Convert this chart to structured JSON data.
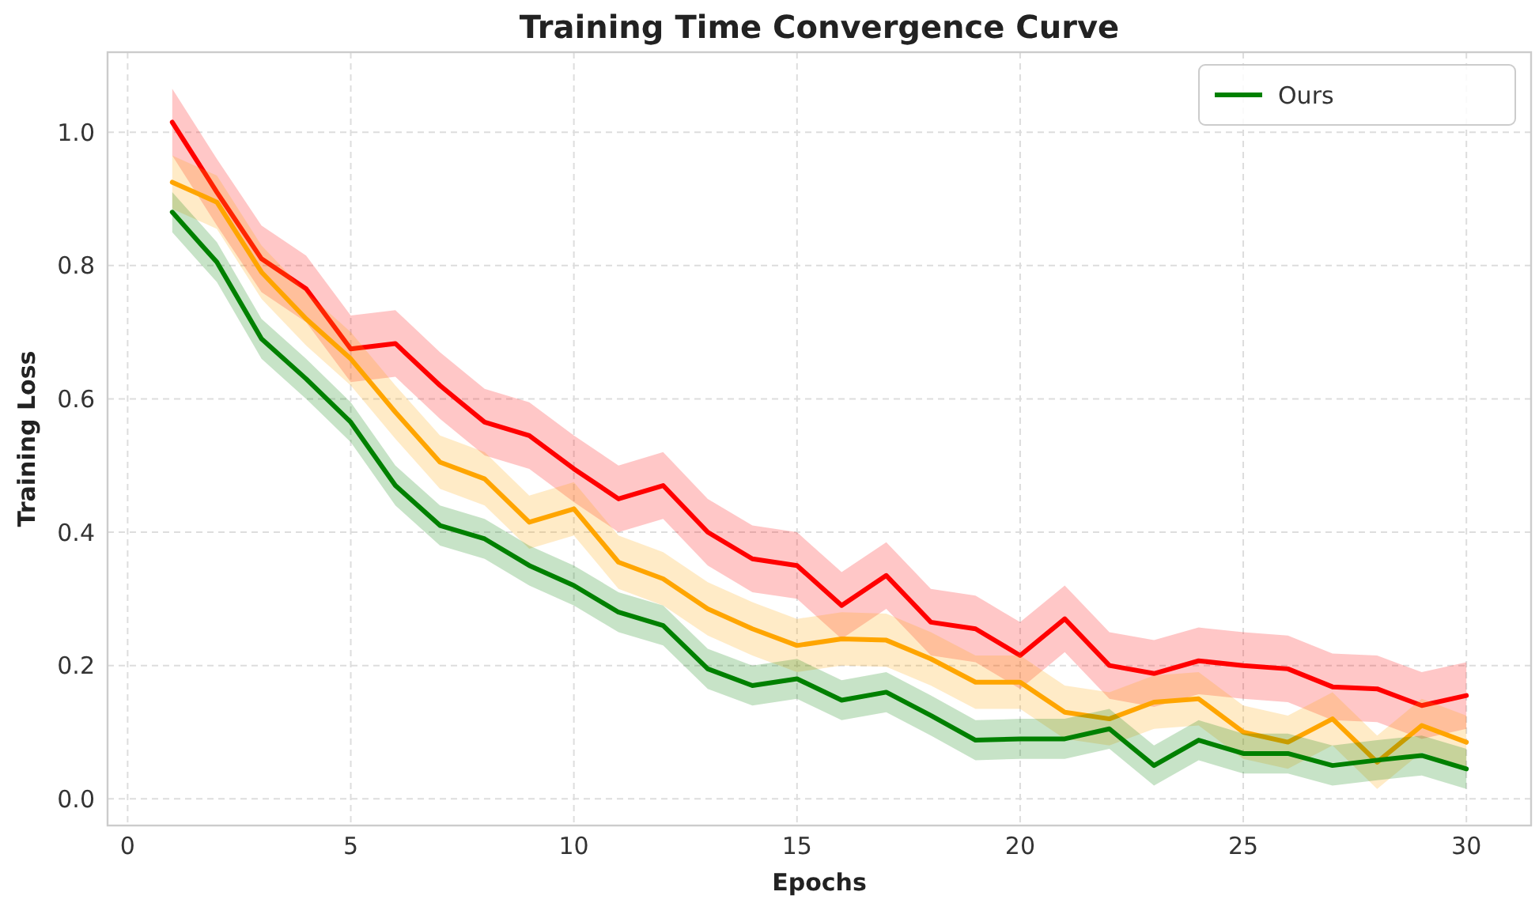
{
  "chart_data": {
    "type": "line",
    "title": "Training Time Convergence Curve",
    "xlabel": "Epochs",
    "ylabel": "Training Loss",
    "x": [
      1,
      2,
      3,
      4,
      5,
      6,
      7,
      8,
      9,
      10,
      11,
      12,
      13,
      14,
      15,
      16,
      17,
      18,
      19,
      20,
      21,
      22,
      23,
      24,
      25,
      26,
      27,
      28,
      29,
      30
    ],
    "xlim": [
      -0.45,
      31.45
    ],
    "xticks": [
      0,
      5,
      10,
      15,
      20,
      25,
      30
    ],
    "ylim": [
      -0.04,
      1.12
    ],
    "yticks": [
      {
        "value": 0,
        "label": "0.0"
      },
      {
        "value": 0.2,
        "label": "0.2"
      },
      {
        "value": 0.4,
        "label": "0.4"
      },
      {
        "value": 0.6,
        "label": "0.6"
      },
      {
        "value": 0.8,
        "label": "0.8"
      },
      {
        "value": 1,
        "label": "1.0"
      }
    ],
    "grid": true,
    "legend": "top right",
    "line_style": "solid",
    "marker": "none",
    "series": [
      {
        "color": "#ff0000",
        "values": [
          1.015,
          0.91,
          0.81,
          0.765,
          0.675,
          0.683,
          0.62,
          0.565,
          0.545,
          0.495,
          0.45,
          0.47,
          0.4,
          0.36,
          0.35,
          0.29,
          0.335,
          0.265,
          0.255,
          0.215,
          0.27,
          0.2,
          0.188,
          0.207,
          0.2,
          0.195,
          0.168,
          0.165,
          0.14,
          0.155
        ],
        "lower": [
          0.965,
          0.86,
          0.76,
          0.715,
          0.625,
          0.633,
          0.57,
          0.515,
          0.495,
          0.445,
          0.4,
          0.42,
          0.35,
          0.31,
          0.3,
          0.24,
          0.285,
          0.215,
          0.205,
          0.165,
          0.22,
          0.15,
          0.138,
          0.157,
          0.15,
          0.145,
          0.118,
          0.115,
          0.09,
          0.105
        ],
        "upper": [
          1.065,
          0.96,
          0.86,
          0.815,
          0.725,
          0.733,
          0.67,
          0.615,
          0.595,
          0.545,
          0.5,
          0.52,
          0.45,
          0.41,
          0.4,
          0.34,
          0.385,
          0.315,
          0.305,
          0.265,
          0.32,
          0.25,
          0.238,
          0.257,
          0.25,
          0.245,
          0.218,
          0.215,
          0.19,
          0.205
        ]
      },
      {
        "color": "#ffa500",
        "values": [
          0.925,
          0.895,
          0.79,
          0.72,
          0.66,
          0.58,
          0.505,
          0.48,
          0.415,
          0.435,
          0.355,
          0.33,
          0.285,
          0.255,
          0.23,
          0.24,
          0.238,
          0.21,
          0.175,
          0.175,
          0.13,
          0.12,
          0.145,
          0.15,
          0.1,
          0.085,
          0.12,
          0.055,
          0.11,
          0.085
        ],
        "lower": [
          0.885,
          0.855,
          0.75,
          0.68,
          0.62,
          0.54,
          0.465,
          0.44,
          0.375,
          0.395,
          0.315,
          0.29,
          0.245,
          0.215,
          0.19,
          0.2,
          0.198,
          0.17,
          0.135,
          0.135,
          0.09,
          0.08,
          0.105,
          0.11,
          0.06,
          0.045,
          0.08,
          0.015,
          0.07,
          0.045
        ],
        "upper": [
          0.965,
          0.935,
          0.83,
          0.76,
          0.7,
          0.62,
          0.545,
          0.52,
          0.455,
          0.475,
          0.395,
          0.37,
          0.325,
          0.295,
          0.27,
          0.28,
          0.278,
          0.25,
          0.215,
          0.215,
          0.17,
          0.16,
          0.185,
          0.19,
          0.14,
          0.125,
          0.16,
          0.095,
          0.15,
          0.125
        ]
      },
      {
        "name": "Ours",
        "color": "#008000",
        "values": [
          0.88,
          0.805,
          0.69,
          0.63,
          0.565,
          0.47,
          0.41,
          0.39,
          0.35,
          0.32,
          0.28,
          0.26,
          0.195,
          0.17,
          0.18,
          0.148,
          0.16,
          0.125,
          0.088,
          0.09,
          0.09,
          0.105,
          0.05,
          0.088,
          0.068,
          0.068,
          0.05,
          0.058,
          0.065,
          0.045
        ],
        "lower": [
          0.85,
          0.775,
          0.66,
          0.6,
          0.535,
          0.44,
          0.38,
          0.36,
          0.32,
          0.29,
          0.25,
          0.23,
          0.165,
          0.14,
          0.15,
          0.118,
          0.13,
          0.095,
          0.058,
          0.06,
          0.06,
          0.075,
          0.02,
          0.058,
          0.038,
          0.038,
          0.02,
          0.028,
          0.035,
          0.015
        ],
        "upper": [
          0.91,
          0.835,
          0.72,
          0.66,
          0.595,
          0.5,
          0.44,
          0.42,
          0.38,
          0.35,
          0.31,
          0.29,
          0.225,
          0.2,
          0.21,
          0.178,
          0.19,
          0.155,
          0.118,
          0.12,
          0.12,
          0.135,
          0.08,
          0.118,
          0.098,
          0.098,
          0.08,
          0.088,
          0.095,
          0.075
        ]
      }
    ]
  }
}
